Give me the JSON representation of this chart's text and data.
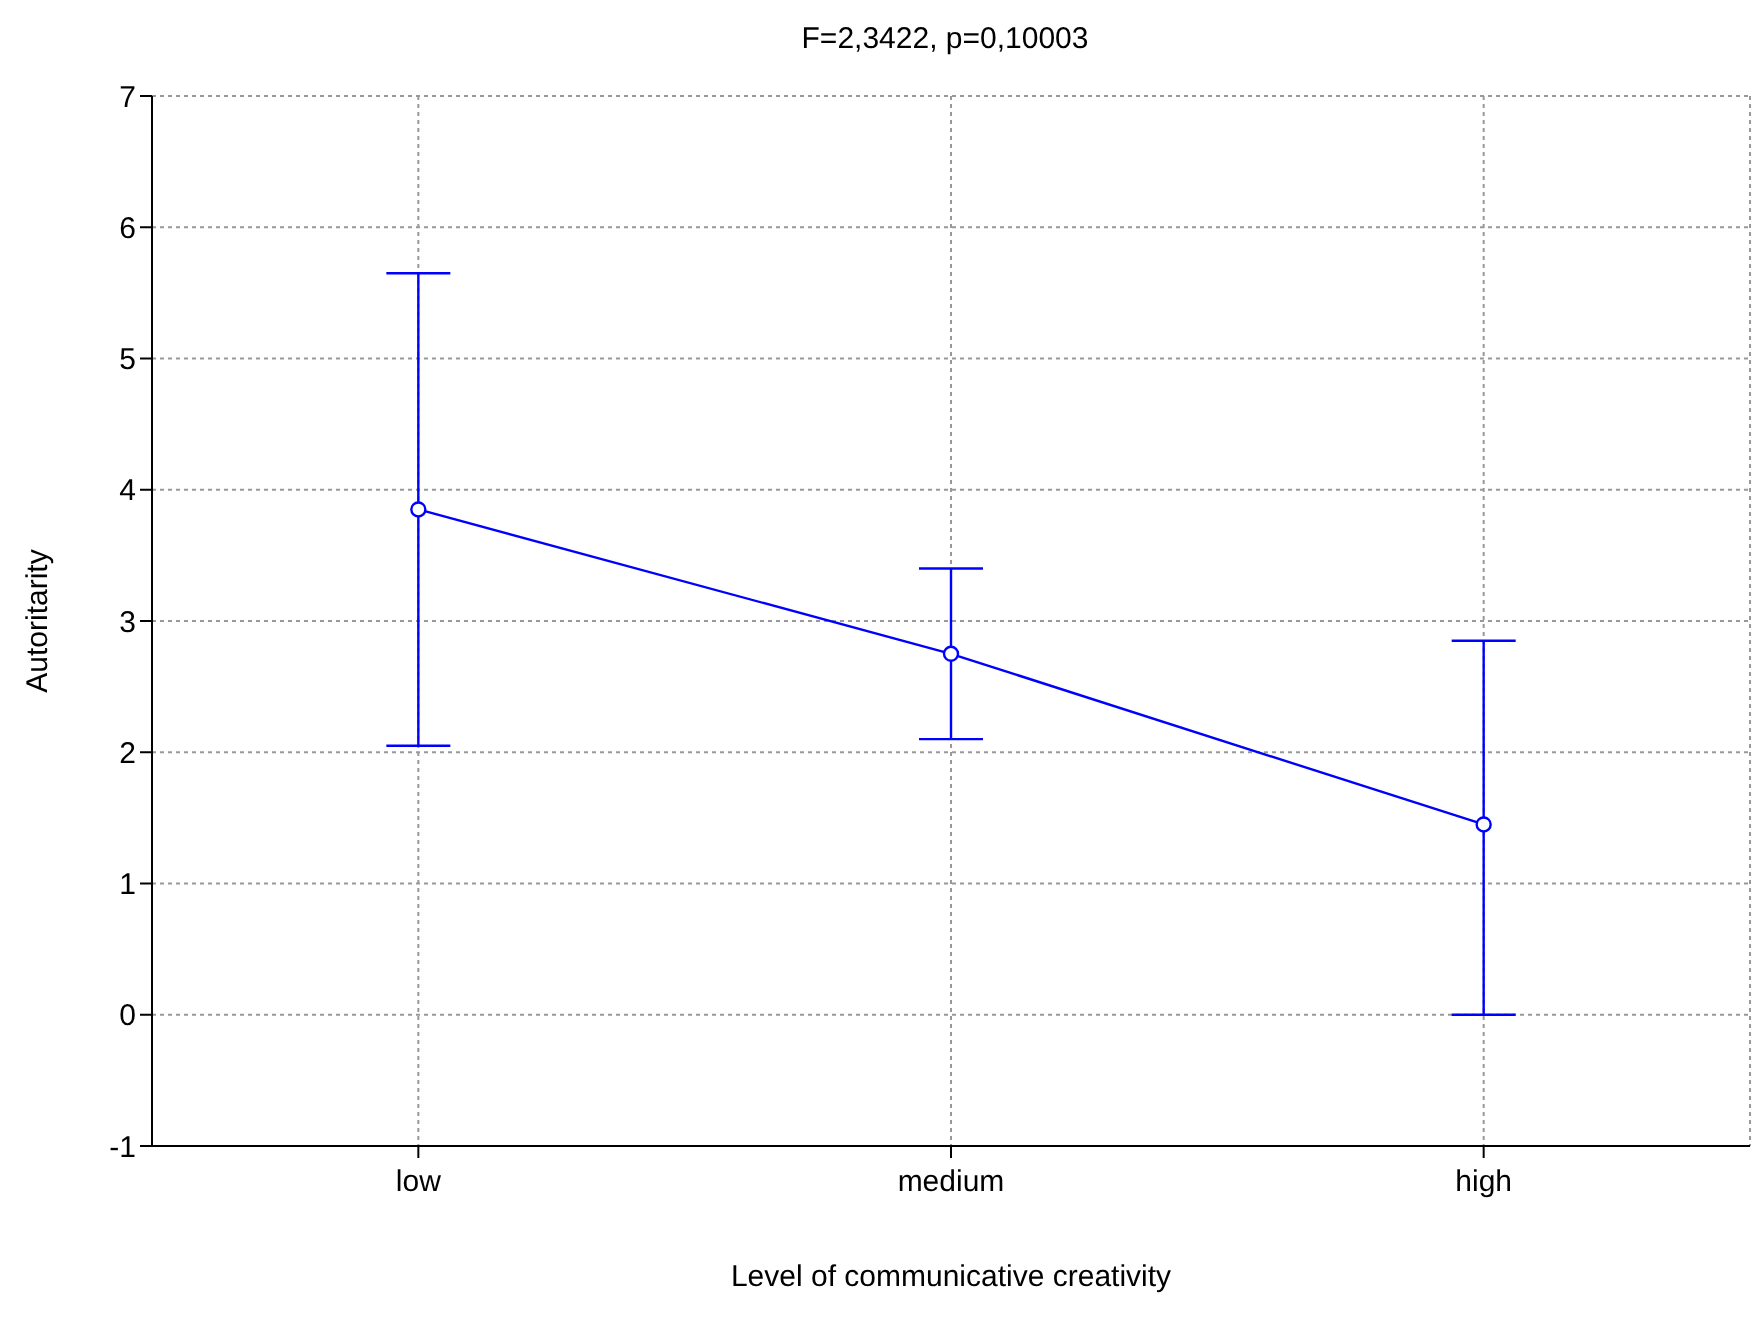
{
  "chart_data": {
    "type": "line",
    "title": "F=2,3422, p=0,10003",
    "xlabel": "Level of communicative creativity",
    "ylabel": "Autoritarity",
    "categories": [
      "low",
      "medium",
      "high"
    ],
    "series": [
      {
        "color": "#0000ff",
        "values": [
          3.85,
          2.75,
          1.45
        ],
        "errors": [
          [
            2.05,
            5.65
          ],
          [
            2.1,
            3.4
          ],
          [
            0,
            2.85
          ]
        ]
      }
    ],
    "ylim": [
      -1,
      7
    ],
    "yticks": [
      -1,
      0,
      1,
      2,
      3,
      4,
      5,
      6,
      7
    ],
    "grid": true,
    "marker": "circle",
    "line_style": "solid"
  }
}
